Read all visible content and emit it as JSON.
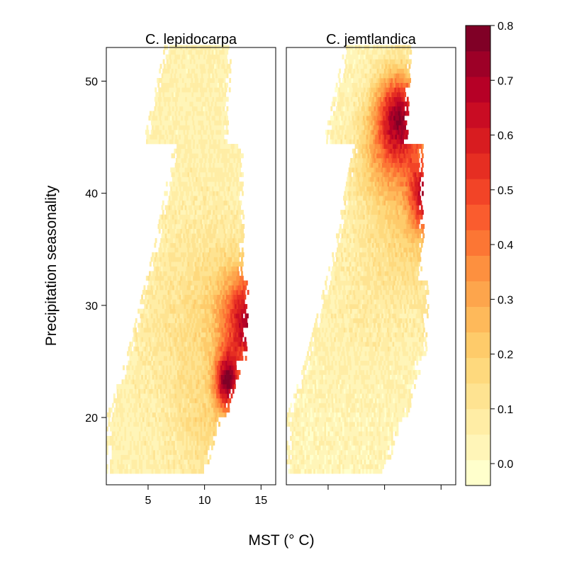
{
  "chart_data": {
    "type": "heatmap",
    "xlabel": "MST (° C)",
    "ylabel": "Precipitation seasonality",
    "xlim": [
      1.3,
      16.3
    ],
    "ylim": [
      14,
      53
    ],
    "x_ticks": [
      5,
      10,
      15
    ],
    "y_ticks": [
      20,
      30,
      40,
      50
    ],
    "colorbar": {
      "min": -0.04,
      "max": 0.8,
      "ticks": [
        "0.0",
        "0.1",
        "0.2",
        "0.3",
        "0.4",
        "0.5",
        "0.6",
        "0.7",
        "0.8"
      ],
      "colors": [
        "#FFFFCC",
        "#FFF5B8",
        "#FFEDA5",
        "#FEE391",
        "#FED97D",
        "#FECB6A",
        "#FEB95A",
        "#FDA54C",
        "#FD903F",
        "#FC7634",
        "#FA5C2E",
        "#F24427",
        "#E62E22",
        "#D81C20",
        "#C90C23",
        "#B60026",
        "#9D0027",
        "#800026"
      ]
    },
    "panels": [
      {
        "title": "C. lepidocarpa",
        "tick_labels": true,
        "x_range": {
          "0": [
            1.9,
            5.5
          ],
          "10": [
            4.0,
            9.3
          ],
          "20": [
            5.3,
            10.6
          ],
          "30": [
            6.0,
            11.4
          ],
          "40": [
            8.2,
            11.8
          ],
          "48": [
            10.0,
            11.6
          ],
          "52": [
            10.7,
            11.3
          ]
        },
        "y_range": [
          15,
          53
        ],
        "background_value": 0.05,
        "hotspots": [
          {
            "x": 11.9,
            "y": 23.0,
            "sx": 0.75,
            "sy": 1.8,
            "value": 0.62
          },
          {
            "x": 13.3,
            "y": 28.8,
            "sx": 1.5,
            "sy": 3.2,
            "value": 0.42
          },
          {
            "x": 14.5,
            "y": 27.5,
            "sx": 1.2,
            "sy": 2.6,
            "value": 0.3
          },
          {
            "x": 9.5,
            "y": 28.0,
            "sx": 3.0,
            "sy": 6.0,
            "value": 0.1
          },
          {
            "x": 10.5,
            "y": 19.0,
            "sx": 2.0,
            "sy": 3.0,
            "value": 0.08
          }
        ]
      },
      {
        "title": "C. jemtlandica",
        "tick_labels": false,
        "x_range": {
          "0": [
            1.9,
            5.5
          ],
          "10": [
            4.0,
            9.3
          ],
          "20": [
            5.3,
            10.6
          ],
          "30": [
            6.0,
            11.4
          ],
          "40": [
            8.2,
            11.8
          ],
          "48": [
            10.0,
            11.6
          ],
          "52": [
            10.7,
            11.3
          ]
        },
        "y_range": [
          15,
          53
        ],
        "background_value": 0.03,
        "hotspots": [
          {
            "x": 11.2,
            "y": 47.0,
            "sx": 1.5,
            "sy": 2.6,
            "value": 0.58
          },
          {
            "x": 13.5,
            "y": 39.5,
            "sx": 0.9,
            "sy": 2.2,
            "value": 0.52
          },
          {
            "x": 11.0,
            "y": 43.0,
            "sx": 2.3,
            "sy": 3.0,
            "value": 0.28
          },
          {
            "x": 12.0,
            "y": 36.0,
            "sx": 2.5,
            "sy": 4.0,
            "value": 0.12
          },
          {
            "x": 15.0,
            "y": 28.0,
            "sx": 1.0,
            "sy": 3.0,
            "value": 0.08
          },
          {
            "x": 8.0,
            "y": 30.0,
            "sx": 3.5,
            "sy": 6.0,
            "value": 0.04
          }
        ]
      }
    ]
  }
}
